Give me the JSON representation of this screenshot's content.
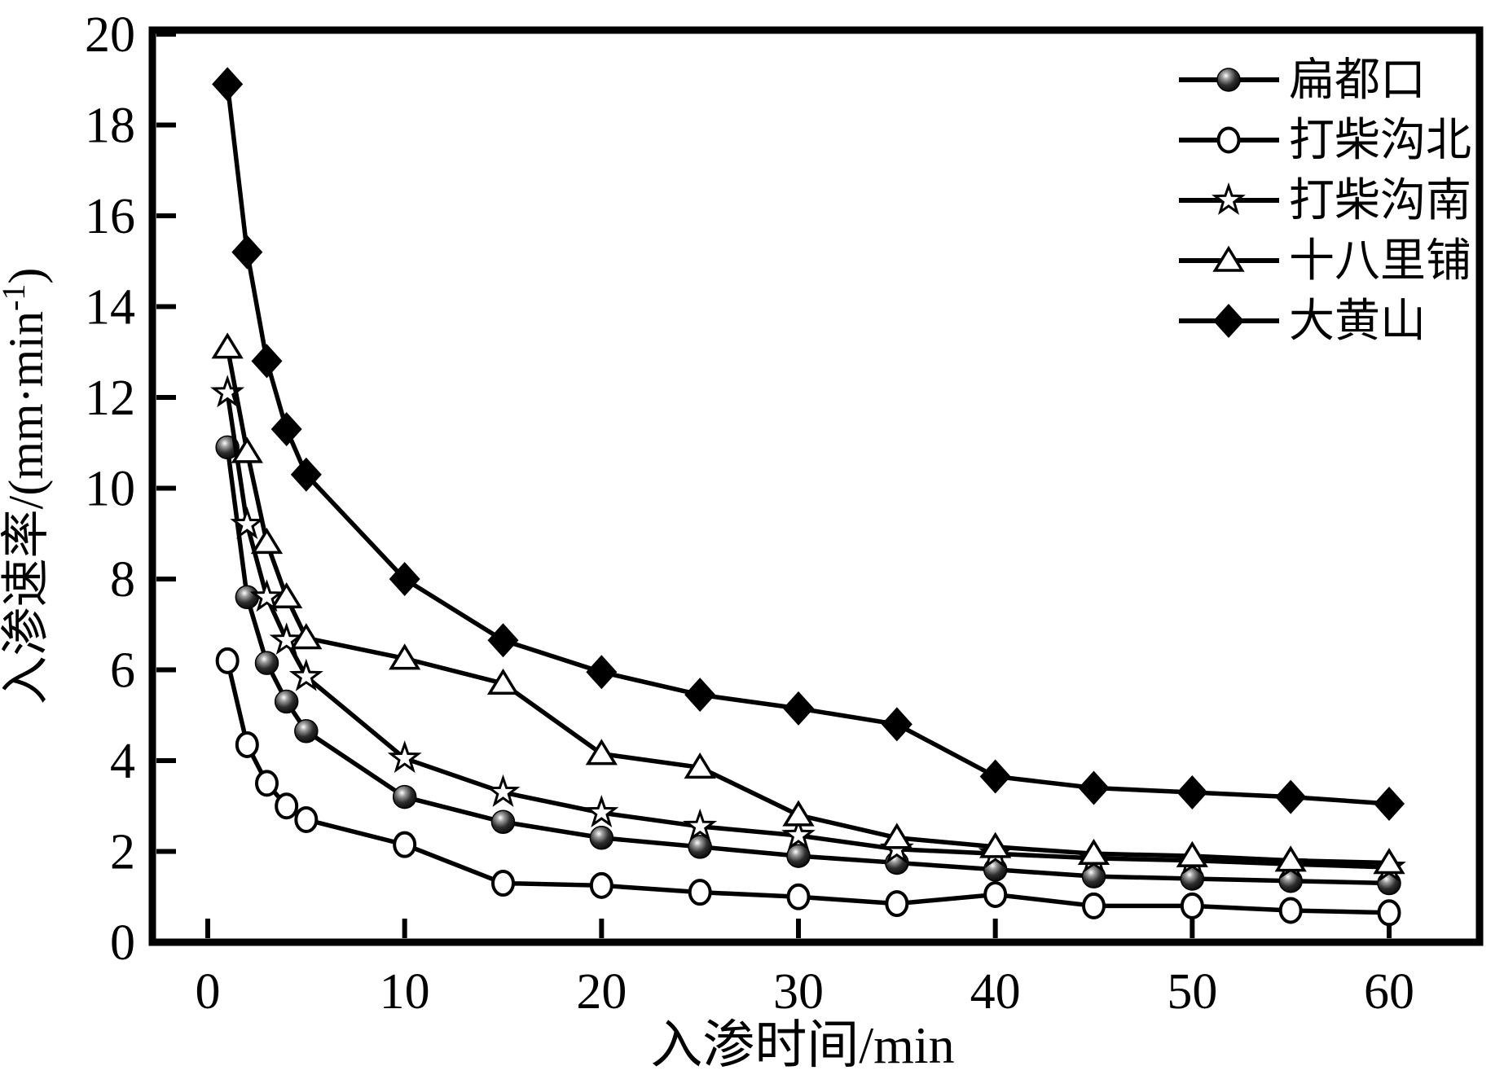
{
  "chart_data": {
    "type": "line",
    "title": "",
    "xlabel": "入渗时间/min",
    "ylabel": "入渗速率/(mm·min⁻¹)",
    "ylabel_parts": {
      "main": "入渗速率/(mm·min",
      "sup": "-1",
      "close": ")"
    },
    "x": [
      1,
      2,
      3,
      4,
      5,
      10,
      15,
      20,
      25,
      30,
      35,
      40,
      45,
      50,
      55,
      60
    ],
    "x_ticks": [
      0,
      10,
      20,
      30,
      40,
      50,
      60
    ],
    "y_ticks": [
      0,
      2,
      4,
      6,
      8,
      10,
      12,
      14,
      16,
      18,
      20
    ],
    "xlim": [
      0,
      60
    ],
    "ylim": [
      0,
      20
    ],
    "grid": false,
    "legend_position": "upper-right-inside",
    "colors": {
      "line": "#000000",
      "background": "#ffffff",
      "marker_fill": "#000000",
      "marker_open": "#ffffff"
    },
    "series": [
      {
        "name": "扁都口",
        "marker": "ball",
        "values": [
          10.9,
          7.6,
          6.15,
          5.3,
          4.65,
          3.2,
          2.65,
          2.3,
          2.1,
          1.9,
          1.75,
          1.6,
          1.45,
          1.4,
          1.35,
          1.3
        ]
      },
      {
        "name": "打柴沟北",
        "marker": "open-circle",
        "values": [
          6.2,
          4.35,
          3.5,
          3.0,
          2.7,
          2.15,
          1.3,
          1.25,
          1.1,
          1.0,
          0.85,
          1.05,
          0.8,
          0.8,
          0.7,
          0.65
        ]
      },
      {
        "name": "打柴沟南",
        "marker": "open-star",
        "values": [
          12.1,
          9.2,
          7.6,
          6.65,
          5.85,
          4.05,
          3.3,
          2.85,
          2.55,
          2.35,
          2.05,
          1.95,
          1.85,
          1.8,
          1.72,
          1.65
        ]
      },
      {
        "name": "十八里铺",
        "marker": "open-triangle",
        "values": [
          13.1,
          10.8,
          8.8,
          7.6,
          6.7,
          6.25,
          5.7,
          4.15,
          3.85,
          2.8,
          2.3,
          2.1,
          1.95,
          1.9,
          1.8,
          1.75
        ]
      },
      {
        "name": "大黄山",
        "marker": "filled-diamond",
        "values": [
          18.9,
          15.2,
          12.8,
          11.3,
          10.3,
          8.0,
          6.65,
          5.95,
          5.45,
          5.15,
          4.8,
          3.65,
          3.4,
          3.3,
          3.2,
          3.05
        ]
      }
    ]
  }
}
